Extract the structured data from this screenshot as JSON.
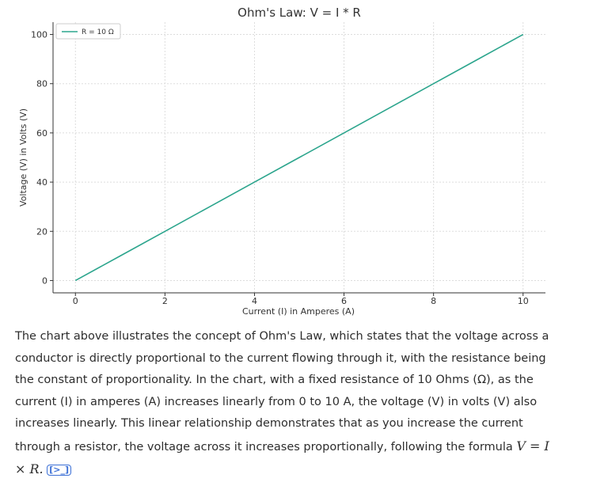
{
  "chart_data": {
    "type": "line",
    "title": "Ohm's Law: V = I * R",
    "xlabel": "Current (I) in Amperes (A)",
    "ylabel": "Voltage (V) in Volts (V)",
    "x": [
      0,
      1,
      2,
      3,
      4,
      5,
      6,
      7,
      8,
      9,
      10
    ],
    "series": [
      {
        "name": "R = 10 Ω",
        "values": [
          0,
          10,
          20,
          30,
          40,
          50,
          60,
          70,
          80,
          90,
          100
        ],
        "color": "#2ca58d"
      }
    ],
    "xticks": [
      0,
      2,
      4,
      6,
      8,
      10
    ],
    "yticks": [
      0,
      20,
      40,
      60,
      80,
      100
    ],
    "xlim": [
      -0.5,
      10.5
    ],
    "ylim": [
      -5,
      105
    ],
    "grid": true,
    "legend_position": "top-left"
  },
  "explanation": {
    "body_text": "The chart above illustrates the concept of Ohm's Law, which states that the voltage across a conductor is directly proportional to the current flowing through it, with the resistance being the constant of proportionality. In the chart, with a fixed resistance of 10 Ohms (Ω), as the current (I) in amperes (A) increases linearly from 0 to 10 A, the voltage (V) in volts (V) also increases linearly. This linear relationship demonstrates that as you increase the current through a resistor, the voltage across it increases proportionally, following the formula ",
    "formula": "V = I × R.",
    "citation": "[>_]",
    "citation_icon": "code-citation-icon"
  }
}
